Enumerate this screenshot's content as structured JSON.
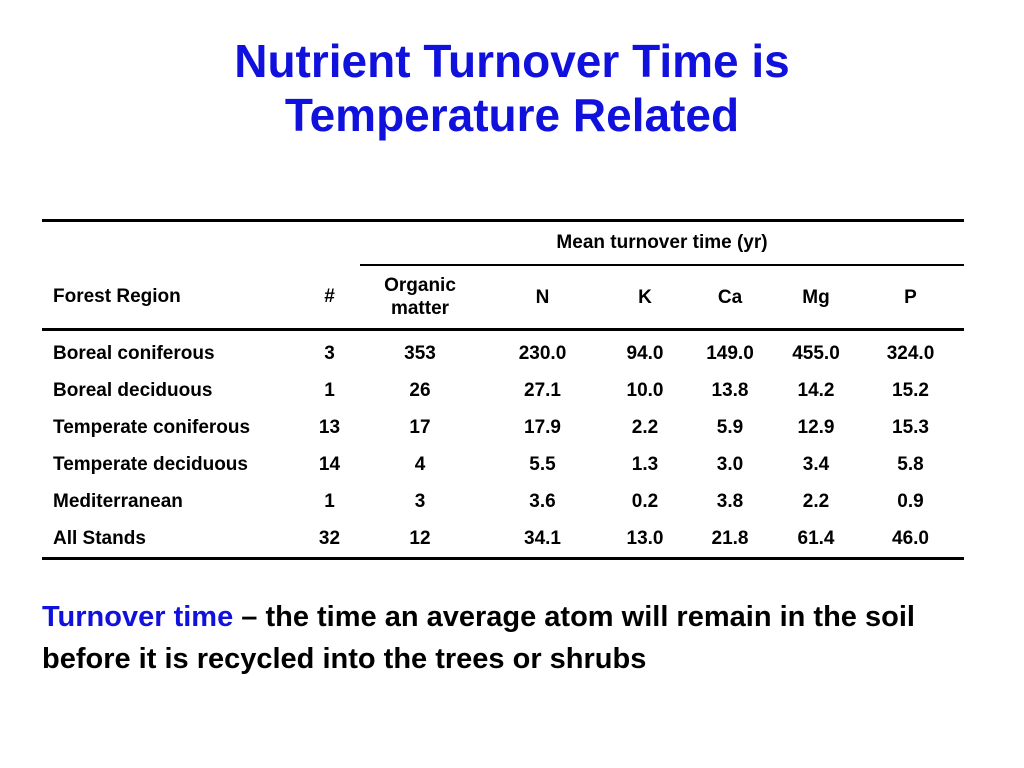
{
  "title": {
    "line1": "Nutrient Turnover Time is",
    "line2": "Temperature Related"
  },
  "table": {
    "group_header": "Mean turnover time (yr)",
    "columns": [
      "Forest Region",
      "#",
      "Organic matter",
      "N",
      "K",
      "Ca",
      "Mg",
      "P"
    ],
    "rows": [
      [
        "Boreal coniferous",
        "3",
        "353",
        "230.0",
        "94.0",
        "149.0",
        "455.0",
        "324.0"
      ],
      [
        "Boreal deciduous",
        "1",
        "26",
        "27.1",
        "10.0",
        "13.8",
        "14.2",
        "15.2"
      ],
      [
        "Temperate coniferous",
        "13",
        "17",
        "17.9",
        "2.2",
        "5.9",
        "12.9",
        "15.3"
      ],
      [
        "Temperate deciduous",
        "14",
        "4",
        "5.5",
        "1.3",
        "3.0",
        "3.4",
        "5.8"
      ],
      [
        "Mediterranean",
        "1",
        "3",
        "3.6",
        "0.2",
        "3.8",
        "2.2",
        "0.9"
      ],
      [
        "All Stands",
        "32",
        "12",
        "34.1",
        "13.0",
        "21.8",
        "61.4",
        "46.0"
      ]
    ]
  },
  "definition": {
    "term": "Turnover time",
    "text": " – the time an average atom will remain in the soil before it is recycled into the trees or shrubs"
  },
  "colors": {
    "accent": "#1111dd",
    "text": "#000000",
    "background": "#ffffff"
  }
}
